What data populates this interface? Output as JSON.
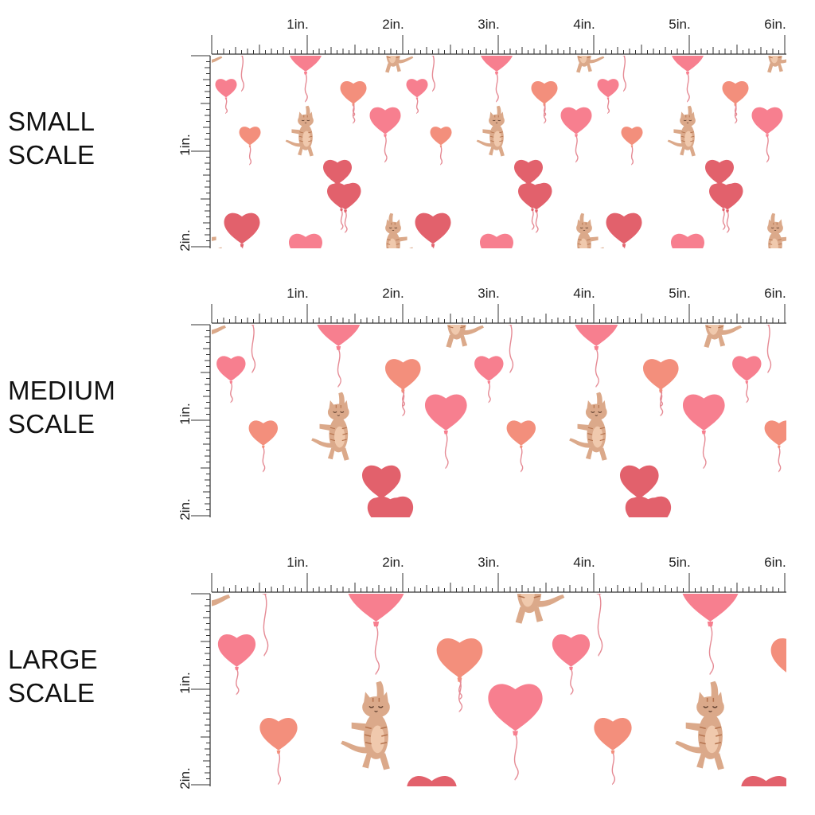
{
  "colors": {
    "background": "#ffffff",
    "balloon_red": "#e2616c",
    "balloon_pink": "#f77f8f",
    "balloon_peach": "#f38f7c",
    "string": "#e58a94",
    "cat_body": "#dba98a",
    "cat_belly": "#f0c9ad",
    "cat_stripe": "#b5744f",
    "ruler": "#333333"
  },
  "ruler": {
    "horizontal_labels": [
      "1in.",
      "2in.",
      "3in.",
      "4in.",
      "5in.",
      "6in."
    ],
    "vertical_labels": [
      "1in.",
      "2in."
    ]
  },
  "scales": [
    {
      "id": "small",
      "line1": "SMALL",
      "line2": "SCALE"
    },
    {
      "id": "medium",
      "line1": "MEDIUM",
      "line2": "SCALE"
    },
    {
      "id": "large",
      "line1": "LARGE",
      "line2": "SCALE"
    }
  ]
}
